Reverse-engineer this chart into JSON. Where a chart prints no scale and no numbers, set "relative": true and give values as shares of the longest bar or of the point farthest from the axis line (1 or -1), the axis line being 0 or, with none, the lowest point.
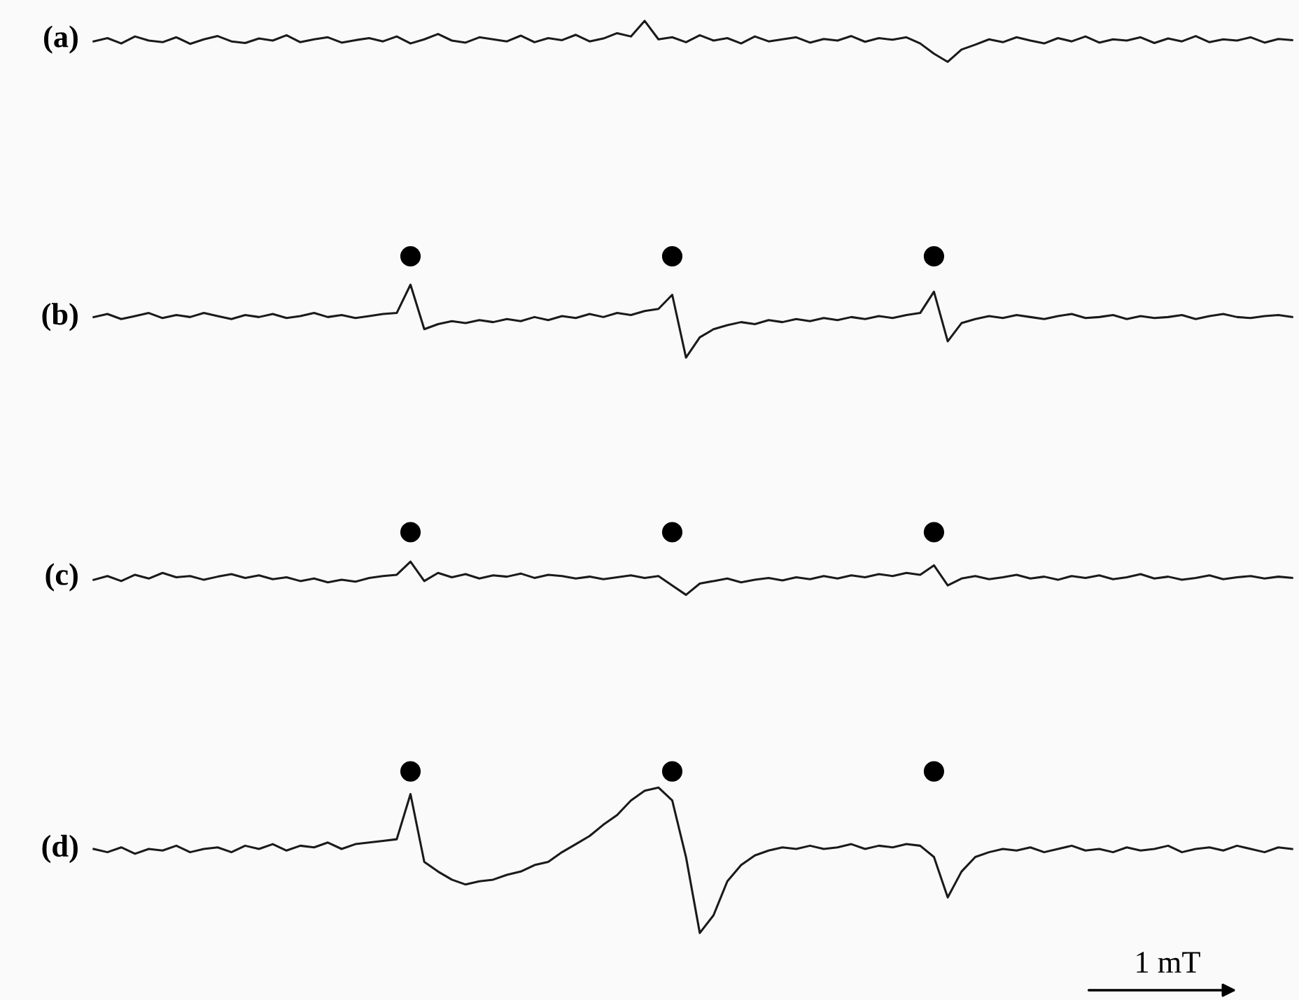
{
  "chart_data": [
    {
      "type": "line",
      "title": "(a)",
      "relative": true,
      "tick_labels": false,
      "categories": [
        null,
        null,
        null,
        null,
        null,
        null,
        null,
        null,
        null,
        null,
        null,
        null,
        null,
        null,
        null,
        null,
        null,
        null,
        null,
        null,
        null,
        null,
        null,
        null,
        null,
        null,
        null,
        null,
        null,
        null,
        null,
        null,
        null,
        null,
        null,
        null,
        null,
        null,
        null,
        null,
        null,
        null,
        null,
        null,
        null,
        null,
        null,
        null,
        null,
        null,
        null,
        null,
        null,
        null,
        null,
        null,
        null,
        null,
        null,
        null,
        null,
        null,
        null,
        null,
        null,
        null,
        null,
        null,
        null,
        null,
        null,
        null,
        null,
        null,
        null,
        null,
        null,
        null,
        null,
        null,
        null,
        null,
        null,
        null,
        null,
        null,
        null,
        null
      ],
      "series": [
        {
          "color": "#1a1a1a",
          "values": [
            0.5,
            0.58,
            0.45,
            0.62,
            0.52,
            0.48,
            0.6,
            0.44,
            0.55,
            0.63,
            0.5,
            0.46,
            0.57,
            0.52,
            0.65,
            0.48,
            0.55,
            0.6,
            0.47,
            0.53,
            0.58,
            0.5,
            0.62,
            0.45,
            0.55,
            0.68,
            0.52,
            0.47,
            0.6,
            0.55,
            0.5,
            0.64,
            0.48,
            0.58,
            0.53,
            0.66,
            0.5,
            0.57,
            0.7,
            0.62,
            1.0,
            0.55,
            0.6,
            0.48,
            0.65,
            0.52,
            0.58,
            0.45,
            0.62,
            0.5,
            0.55,
            0.6,
            0.47,
            0.56,
            0.52,
            0.63,
            0.49,
            0.58,
            0.54,
            0.6,
            0.45,
            0.2,
            0.0,
            0.3,
            0.42,
            0.55,
            0.48,
            0.6,
            0.52,
            0.45,
            0.58,
            0.5,
            0.62,
            0.47,
            0.55,
            0.52,
            0.6,
            0.46,
            0.57,
            0.5,
            0.63,
            0.48,
            0.55,
            0.52,
            0.6,
            0.47,
            0.56,
            0.53
          ]
        }
      ]
    },
    {
      "type": "line",
      "title": "(b)",
      "relative": true,
      "tick_labels": false,
      "categories": [
        null,
        null,
        null,
        null,
        null,
        null,
        null,
        null,
        null,
        null,
        null,
        null,
        null,
        null,
        null,
        null,
        null,
        null,
        null,
        null,
        null,
        null,
        null,
        null,
        null,
        null,
        null,
        null,
        null,
        null,
        null,
        null,
        null,
        null,
        null,
        null,
        null,
        null,
        null,
        null,
        null,
        null,
        null,
        null,
        null,
        null,
        null,
        null,
        null,
        null,
        null,
        null,
        null,
        null,
        null,
        null,
        null,
        null,
        null,
        null,
        null,
        null,
        null,
        null,
        null,
        null,
        null,
        null,
        null,
        null,
        null,
        null,
        null,
        null,
        null,
        null,
        null,
        null,
        null,
        null,
        null,
        null,
        null,
        null,
        null,
        null,
        null,
        null
      ],
      "series": [
        {
          "color": "#1a1a1a",
          "values": [
            0.4,
            0.43,
            0.38,
            0.41,
            0.44,
            0.39,
            0.42,
            0.4,
            0.44,
            0.41,
            0.38,
            0.42,
            0.4,
            0.43,
            0.39,
            0.41,
            0.44,
            0.4,
            0.42,
            0.39,
            0.41,
            0.43,
            0.44,
            0.72,
            0.28,
            0.33,
            0.36,
            0.34,
            0.37,
            0.35,
            0.38,
            0.36,
            0.4,
            0.37,
            0.41,
            0.39,
            0.43,
            0.4,
            0.44,
            0.42,
            0.46,
            0.48,
            0.62,
            0.0,
            0.2,
            0.28,
            0.32,
            0.35,
            0.33,
            0.37,
            0.35,
            0.38,
            0.36,
            0.39,
            0.37,
            0.4,
            0.38,
            0.41,
            0.39,
            0.42,
            0.44,
            0.65,
            0.16,
            0.34,
            0.38,
            0.41,
            0.39,
            0.42,
            0.4,
            0.38,
            0.41,
            0.43,
            0.39,
            0.4,
            0.42,
            0.38,
            0.41,
            0.39,
            0.4,
            0.42,
            0.38,
            0.41,
            0.43,
            0.4,
            0.39,
            0.41,
            0.42,
            0.4
          ]
        },
        {
          "type": "scatter",
          "marker": "circle",
          "color": "#000000",
          "values": [
            null,
            null,
            null,
            null,
            null,
            null,
            null,
            null,
            null,
            null,
            null,
            null,
            null,
            null,
            null,
            null,
            null,
            null,
            null,
            null,
            null,
            null,
            null,
            1.0,
            null,
            null,
            null,
            null,
            null,
            null,
            null,
            null,
            null,
            null,
            null,
            null,
            null,
            null,
            null,
            null,
            null,
            null,
            1.0,
            null,
            null,
            null,
            null,
            null,
            null,
            null,
            null,
            null,
            null,
            null,
            null,
            null,
            null,
            null,
            null,
            null,
            null,
            1.0,
            null,
            null,
            null,
            null,
            null,
            null,
            null,
            null,
            null,
            null,
            null,
            null,
            null,
            null,
            null,
            null,
            null,
            null,
            null,
            null,
            null,
            null,
            null,
            null,
            null,
            null
          ]
        }
      ]
    },
    {
      "type": "line",
      "title": "(c)",
      "relative": true,
      "tick_labels": false,
      "categories": [
        null,
        null,
        null,
        null,
        null,
        null,
        null,
        null,
        null,
        null,
        null,
        null,
        null,
        null,
        null,
        null,
        null,
        null,
        null,
        null,
        null,
        null,
        null,
        null,
        null,
        null,
        null,
        null,
        null,
        null,
        null,
        null,
        null,
        null,
        null,
        null,
        null,
        null,
        null,
        null,
        null,
        null,
        null,
        null,
        null,
        null,
        null,
        null,
        null,
        null,
        null,
        null,
        null,
        null,
        null,
        null,
        null,
        null,
        null,
        null,
        null,
        null,
        null,
        null,
        null,
        null,
        null,
        null,
        null,
        null,
        null,
        null,
        null,
        null,
        null,
        null,
        null,
        null,
        null,
        null,
        null,
        null,
        null,
        null,
        null,
        null,
        null,
        null
      ],
      "series": [
        {
          "color": "#1a1a1a",
          "values": [
            0.24,
            0.3,
            0.22,
            0.32,
            0.26,
            0.35,
            0.28,
            0.3,
            0.24,
            0.29,
            0.33,
            0.27,
            0.31,
            0.25,
            0.28,
            0.22,
            0.26,
            0.2,
            0.24,
            0.21,
            0.27,
            0.3,
            0.32,
            0.53,
            0.22,
            0.35,
            0.28,
            0.33,
            0.26,
            0.31,
            0.29,
            0.34,
            0.27,
            0.32,
            0.3,
            0.26,
            0.29,
            0.25,
            0.28,
            0.31,
            0.27,
            0.3,
            0.15,
            0.0,
            0.18,
            0.22,
            0.26,
            0.2,
            0.24,
            0.27,
            0.23,
            0.28,
            0.25,
            0.3,
            0.26,
            0.31,
            0.28,
            0.33,
            0.3,
            0.35,
            0.32,
            0.47,
            0.15,
            0.26,
            0.3,
            0.25,
            0.28,
            0.32,
            0.26,
            0.29,
            0.24,
            0.3,
            0.27,
            0.31,
            0.25,
            0.28,
            0.33,
            0.26,
            0.29,
            0.24,
            0.27,
            0.31,
            0.25,
            0.28,
            0.3,
            0.26,
            0.29,
            0.27
          ]
        },
        {
          "type": "scatter",
          "marker": "circle",
          "color": "#000000",
          "values": [
            null,
            null,
            null,
            null,
            null,
            null,
            null,
            null,
            null,
            null,
            null,
            null,
            null,
            null,
            null,
            null,
            null,
            null,
            null,
            null,
            null,
            null,
            null,
            1.0,
            null,
            null,
            null,
            null,
            null,
            null,
            null,
            null,
            null,
            null,
            null,
            null,
            null,
            null,
            null,
            null,
            null,
            null,
            1.0,
            null,
            null,
            null,
            null,
            null,
            null,
            null,
            null,
            null,
            null,
            null,
            null,
            null,
            null,
            null,
            null,
            null,
            null,
            1.0,
            null,
            null,
            null,
            null,
            null,
            null,
            null,
            null,
            null,
            null,
            null,
            null,
            null,
            null,
            null,
            null,
            null,
            null,
            null,
            null,
            null,
            null,
            null,
            null,
            null,
            null
          ]
        }
      ]
    },
    {
      "type": "line",
      "title": "(d)",
      "relative": true,
      "tick_labels": false,
      "annotations": [
        "1 mT"
      ],
      "categories": [
        null,
        null,
        null,
        null,
        null,
        null,
        null,
        null,
        null,
        null,
        null,
        null,
        null,
        null,
        null,
        null,
        null,
        null,
        null,
        null,
        null,
        null,
        null,
        null,
        null,
        null,
        null,
        null,
        null,
        null,
        null,
        null,
        null,
        null,
        null,
        null,
        null,
        null,
        null,
        null,
        null,
        null,
        null,
        null,
        null,
        null,
        null,
        null,
        null,
        null,
        null,
        null,
        null,
        null,
        null,
        null,
        null,
        null,
        null,
        null,
        null,
        null,
        null,
        null,
        null,
        null,
        null,
        null,
        null,
        null,
        null,
        null,
        null,
        null,
        null,
        null,
        null,
        null,
        null,
        null,
        null,
        null,
        null,
        null,
        null,
        null,
        null,
        null
      ],
      "series": [
        {
          "color": "#1a1a1a",
          "values": [
            0.52,
            0.5,
            0.53,
            0.49,
            0.52,
            0.51,
            0.54,
            0.5,
            0.52,
            0.53,
            0.5,
            0.54,
            0.52,
            0.55,
            0.51,
            0.54,
            0.53,
            0.56,
            0.52,
            0.55,
            0.56,
            0.57,
            0.58,
            0.86,
            0.44,
            0.38,
            0.33,
            0.3,
            0.32,
            0.33,
            0.36,
            0.38,
            0.42,
            0.44,
            0.5,
            0.55,
            0.6,
            0.67,
            0.73,
            0.82,
            0.88,
            0.9,
            0.82,
            0.47,
            0.0,
            0.11,
            0.32,
            0.42,
            0.48,
            0.51,
            0.53,
            0.52,
            0.54,
            0.52,
            0.53,
            0.55,
            0.52,
            0.54,
            0.53,
            0.55,
            0.54,
            0.47,
            0.22,
            0.38,
            0.47,
            0.5,
            0.52,
            0.51,
            0.53,
            0.5,
            0.52,
            0.54,
            0.51,
            0.52,
            0.5,
            0.53,
            0.51,
            0.52,
            0.54,
            0.5,
            0.52,
            0.53,
            0.51,
            0.54,
            0.52,
            0.5,
            0.53,
            0.52
          ]
        },
        {
          "type": "scatter",
          "marker": "circle",
          "color": "#000000",
          "values": [
            null,
            null,
            null,
            null,
            null,
            null,
            null,
            null,
            null,
            null,
            null,
            null,
            null,
            null,
            null,
            null,
            null,
            null,
            null,
            null,
            null,
            null,
            null,
            1.0,
            null,
            null,
            null,
            null,
            null,
            null,
            null,
            null,
            null,
            null,
            null,
            null,
            null,
            null,
            null,
            null,
            null,
            null,
            1.0,
            null,
            null,
            null,
            null,
            null,
            null,
            null,
            null,
            null,
            null,
            null,
            null,
            null,
            null,
            null,
            null,
            null,
            null,
            1.0,
            null,
            null,
            null,
            null,
            null,
            null,
            null,
            null,
            null,
            null,
            null,
            null,
            null,
            null,
            null,
            null,
            null,
            null,
            null,
            null,
            null,
            null,
            null,
            null,
            null,
            null
          ]
        }
      ]
    }
  ]
}
